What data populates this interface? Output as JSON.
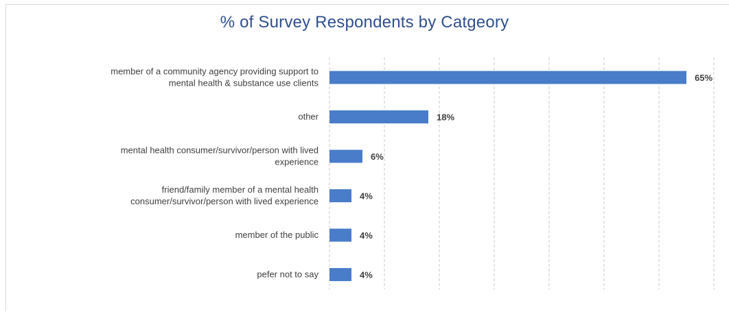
{
  "chart_data": {
    "type": "bar",
    "orientation": "horizontal",
    "title": "% of Survey Respondents by Catgeory",
    "xlabel": "",
    "ylabel": "",
    "categories": [
      [
        "member of a community agency providing support to",
        "mental health & substance use clients"
      ],
      [
        "other"
      ],
      [
        "mental health consumer/survivor/person with lived",
        "experience"
      ],
      [
        "friend/family member of a mental health",
        "consumer/survivor/person with lived experience"
      ],
      [
        "member of the public"
      ],
      [
        "pefer not to say"
      ]
    ],
    "values": [
      65,
      18,
      6,
      4,
      4,
      4
    ],
    "value_labels": [
      "65%",
      "18%",
      "6%",
      "4%",
      "4%",
      "4%"
    ],
    "xlim": [
      0,
      70
    ],
    "grid": true,
    "legend": "none",
    "bar_color": "#4a7dc9"
  }
}
